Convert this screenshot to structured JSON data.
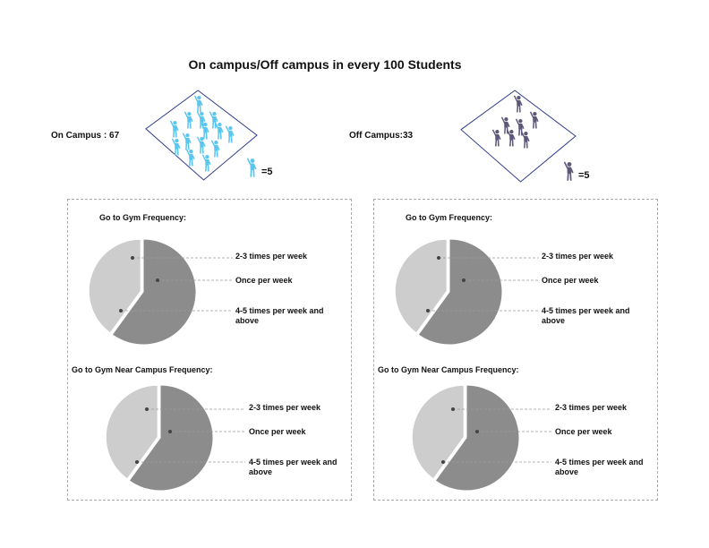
{
  "title": "On campus/Off campus in every 100 Students",
  "groups": [
    {
      "label": "On Campus : 67",
      "icon_count": 14,
      "icon_color": "#5bc5ee",
      "legend_text": "=5",
      "icon_name": "student-figure-icon"
    },
    {
      "label": "Off Campus:33",
      "icon_count": 7,
      "icon_color": "#5d5877",
      "legend_text": "=5",
      "icon_name": "student-figure-icon"
    }
  ],
  "chart_data": [
    {
      "type": "pie",
      "title": "Go to Gym Frequency:",
      "categories": [
        "2-3 times per week",
        "Once per week",
        "4-5 times per week and above"
      ],
      "values": [
        0,
        60,
        40
      ],
      "colors": [
        "#c2c2c2",
        "#8c8c8c",
        "#cdcdcd"
      ]
    },
    {
      "type": "pie",
      "title": "Go to Gym Near Campus Frequency:",
      "categories": [
        "2-3 times per week",
        "Once per week",
        "4-5 times per week and above"
      ],
      "values": [
        0,
        60,
        40
      ],
      "colors": [
        "#c2c2c2",
        "#8c8c8c",
        "#cdcdcd"
      ]
    },
    {
      "type": "pie",
      "title": "Go to Gym Frequency:",
      "categories": [
        "2-3 times per week",
        "Once per week",
        "4-5 times per week and above"
      ],
      "values": [
        0,
        60,
        40
      ],
      "colors": [
        "#c2c2c2",
        "#8c8c8c",
        "#cdcdcd"
      ]
    },
    {
      "type": "pie",
      "title": "Go to Gym Near Campus Frequency:",
      "categories": [
        "2-3 times per week",
        "Once per week",
        "4-5 times per week and above"
      ],
      "values": [
        0,
        60,
        40
      ],
      "colors": [
        "#c2c2c2",
        "#8c8c8c",
        "#cdcdcd"
      ]
    }
  ]
}
